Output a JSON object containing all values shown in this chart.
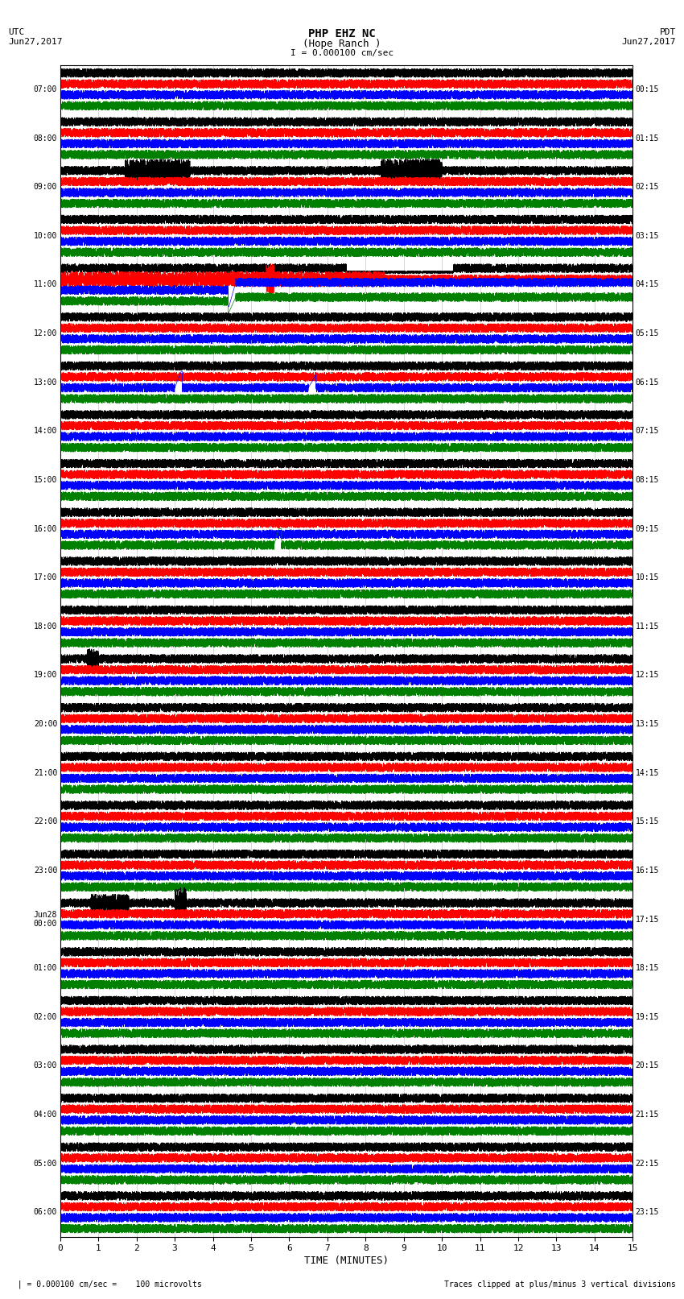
{
  "title_line1": "PHP EHZ NC",
  "title_line2": "(Hope Ranch )",
  "title_line3": "I = 0.000100 cm/sec",
  "label_left_top": "UTC",
  "label_left_date": "Jun27,2017",
  "label_right_top": "PDT",
  "label_right_date": "Jun27,2017",
  "xlabel": "TIME (MINUTES)",
  "footer_left": "  | = 0.000100 cm/sec =    100 microvolts",
  "footer_right": "Traces clipped at plus/minus 3 vertical divisions",
  "n_rows": 24,
  "row_colors": [
    "black",
    "red",
    "blue",
    "green"
  ],
  "bg_color": "white",
  "fig_width": 8.5,
  "fig_height": 16.13,
  "xmin": 0,
  "xmax": 15,
  "xticks": [
    0,
    1,
    2,
    3,
    4,
    5,
    6,
    7,
    8,
    9,
    10,
    11,
    12,
    13,
    14,
    15
  ],
  "left_time_labels": [
    "07:00",
    "08:00",
    "09:00",
    "10:00",
    "11:00",
    "12:00",
    "13:00",
    "14:00",
    "15:00",
    "16:00",
    "17:00",
    "18:00",
    "19:00",
    "20:00",
    "21:00",
    "22:00",
    "23:00",
    "Jun28\n00:00",
    "01:00",
    "02:00",
    "03:00",
    "04:00",
    "05:00",
    "06:00"
  ],
  "right_time_labels": [
    "00:15",
    "01:15",
    "02:15",
    "03:15",
    "04:15",
    "05:15",
    "06:15",
    "07:15",
    "08:15",
    "09:15",
    "10:15",
    "11:15",
    "12:15",
    "13:15",
    "14:15",
    "15:15",
    "16:15",
    "17:15",
    "18:15",
    "19:15",
    "20:15",
    "21:15",
    "22:15",
    "23:15"
  ]
}
